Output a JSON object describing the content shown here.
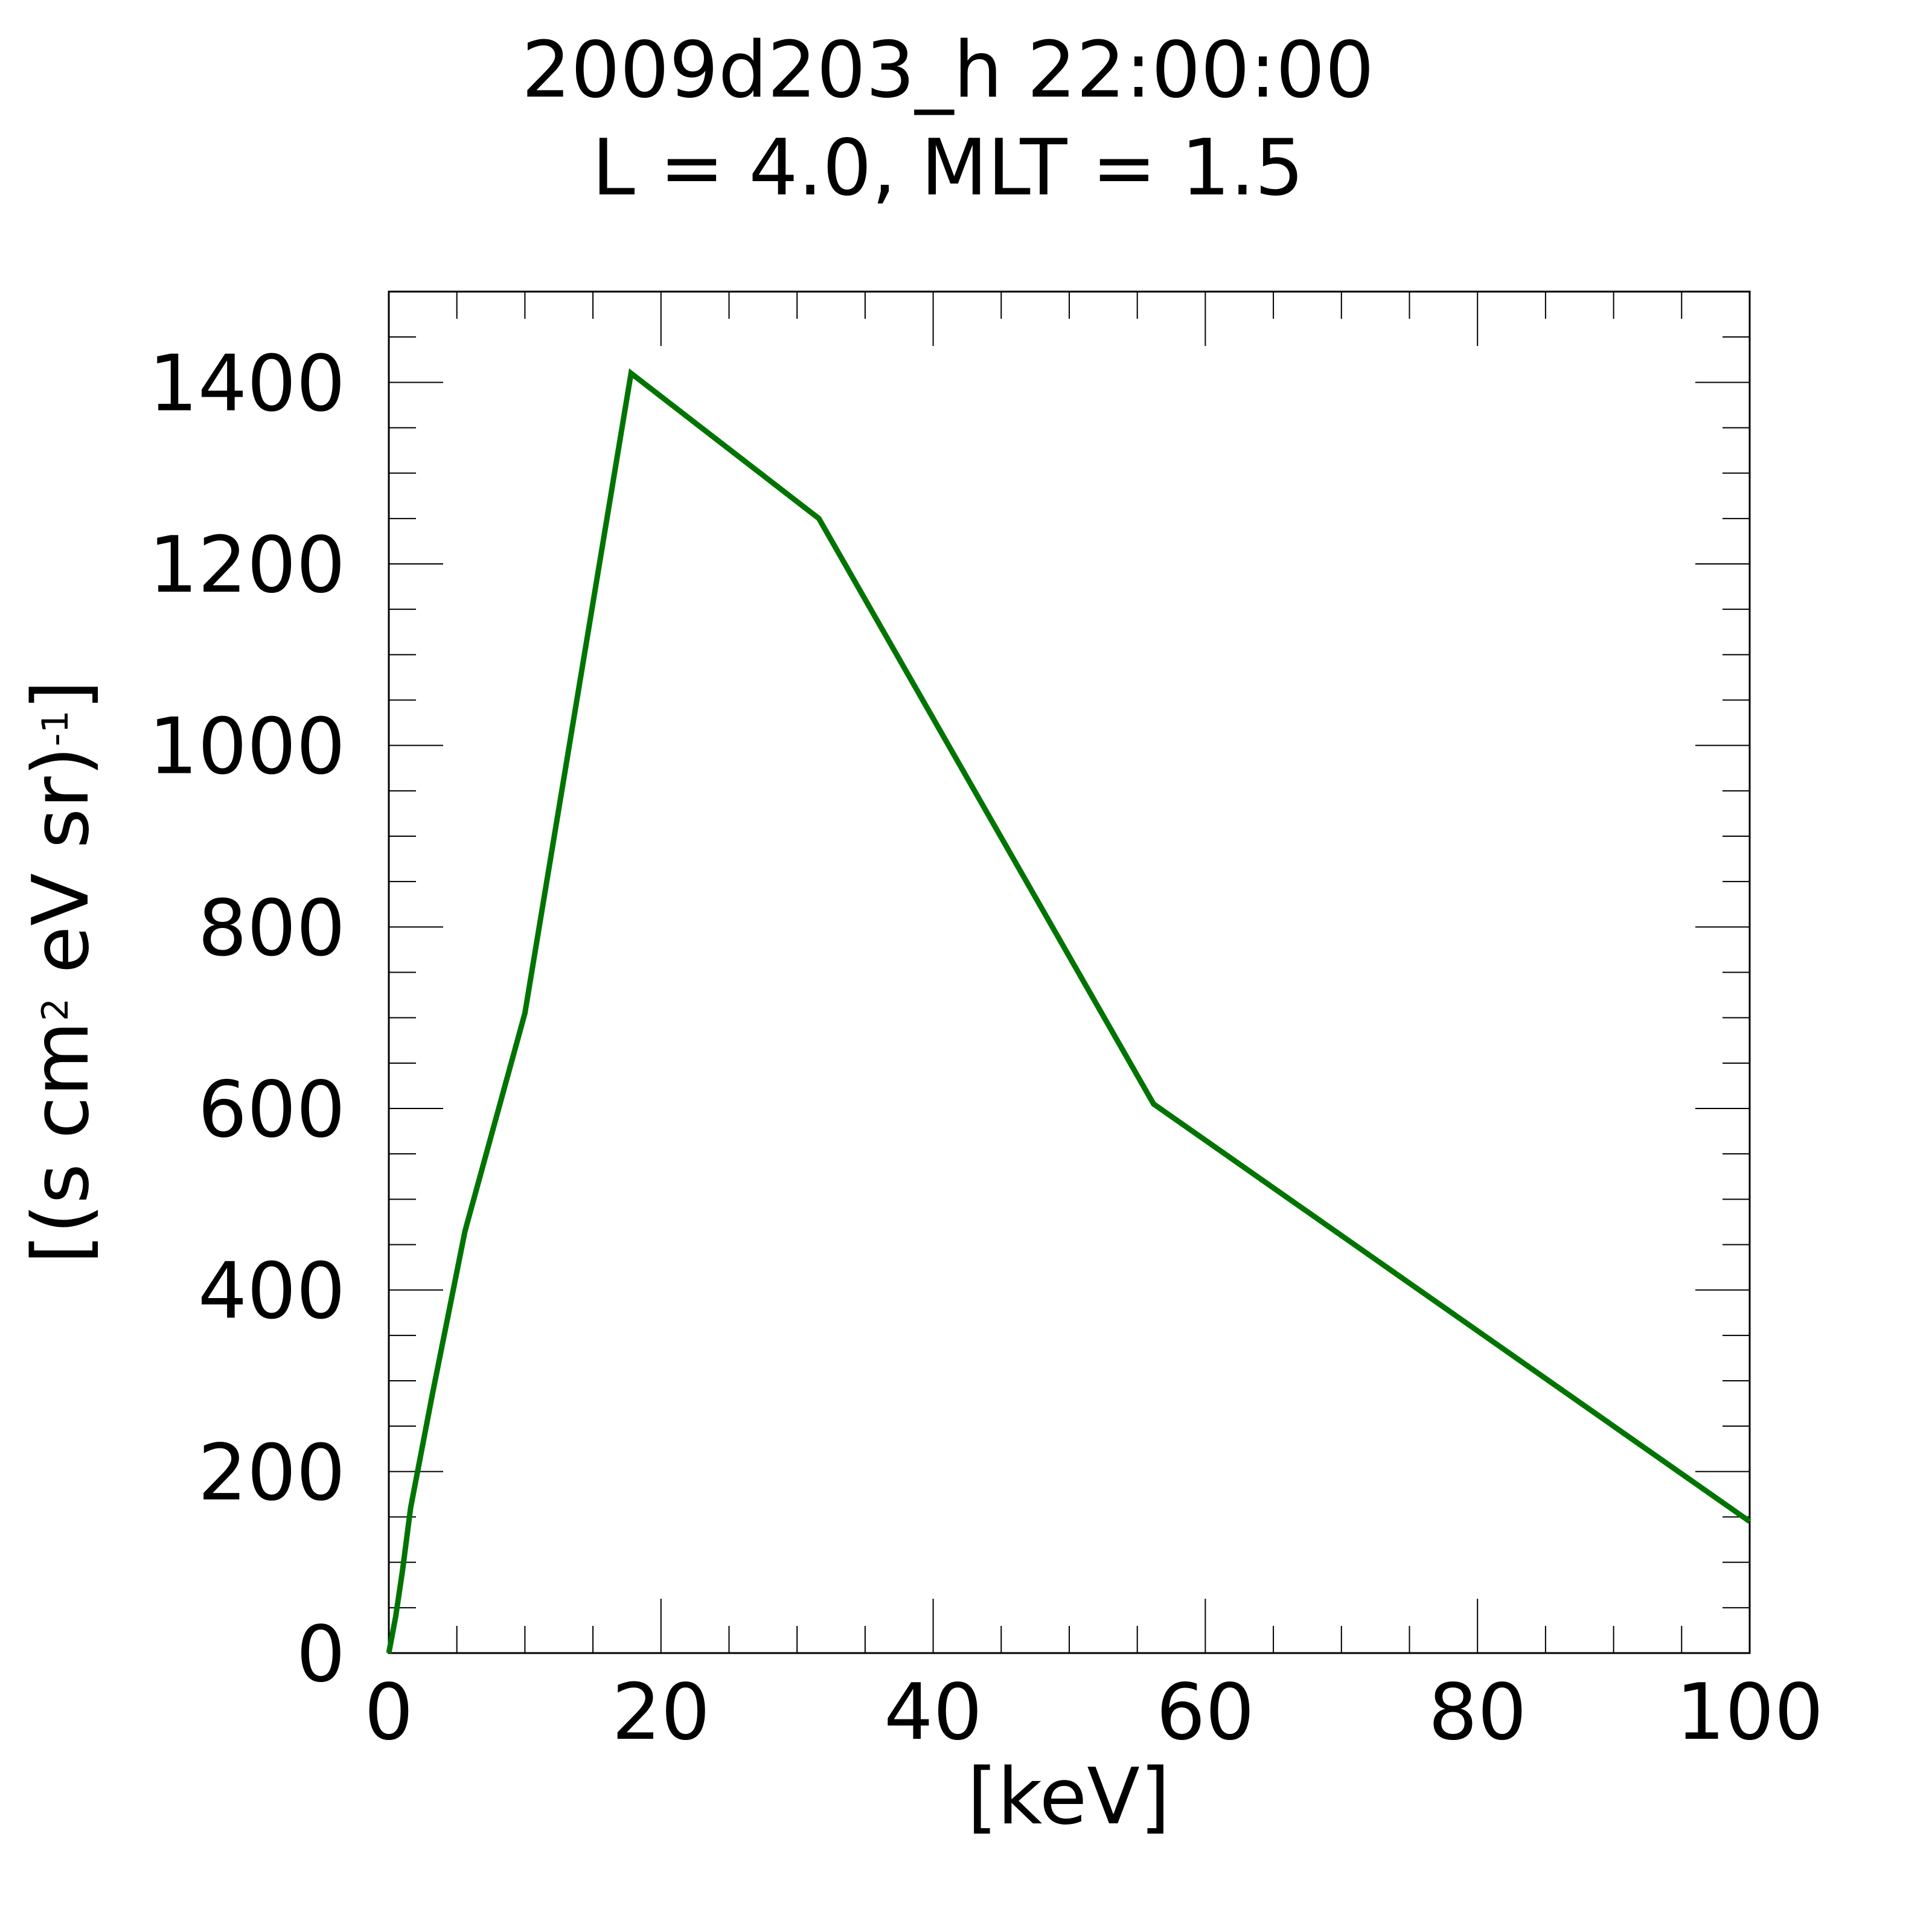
{
  "chart_data": {
    "type": "line",
    "title_lines": [
      "2009d203_h  22:00:00",
      "L = 4.0, MLT =  1.5"
    ],
    "xlabel": "[keV]",
    "ylabel": {
      "parts": [
        {
          "text": "[(s cm",
          "sup": false
        },
        {
          "text": "2",
          "sup": true
        },
        {
          "text": " eV sr)",
          "sup": false
        },
        {
          "text": "-1",
          "sup": true
        },
        {
          "text": "]",
          "sup": false
        }
      ]
    },
    "xlim": [
      0,
      100
    ],
    "ylim": [
      0,
      1500
    ],
    "x_ticks": [
      0,
      20,
      40,
      60,
      80,
      100
    ],
    "x_tick_labels": [
      "0",
      "20",
      "40",
      "60",
      "80",
      "100"
    ],
    "x_minor_step": 5,
    "y_ticks": [
      0,
      200,
      400,
      600,
      800,
      1000,
      1200,
      1400
    ],
    "y_tick_labels": [
      "0",
      "200",
      "400",
      "600",
      "800",
      "1000",
      "1200",
      "1400"
    ],
    "y_minor_step": 50,
    "grid": false,
    "legend": "none",
    "series": [
      {
        "color": "#007400",
        "x": [
          0,
          0.5,
          1.0,
          1.6,
          3.2,
          5.6,
          10.0,
          17.8,
          31.6,
          56.2,
          100
        ],
        "y": [
          0,
          40,
          90,
          160,
          285,
          465,
          705,
          1410,
          1250,
          605,
          145
        ]
      }
    ]
  }
}
